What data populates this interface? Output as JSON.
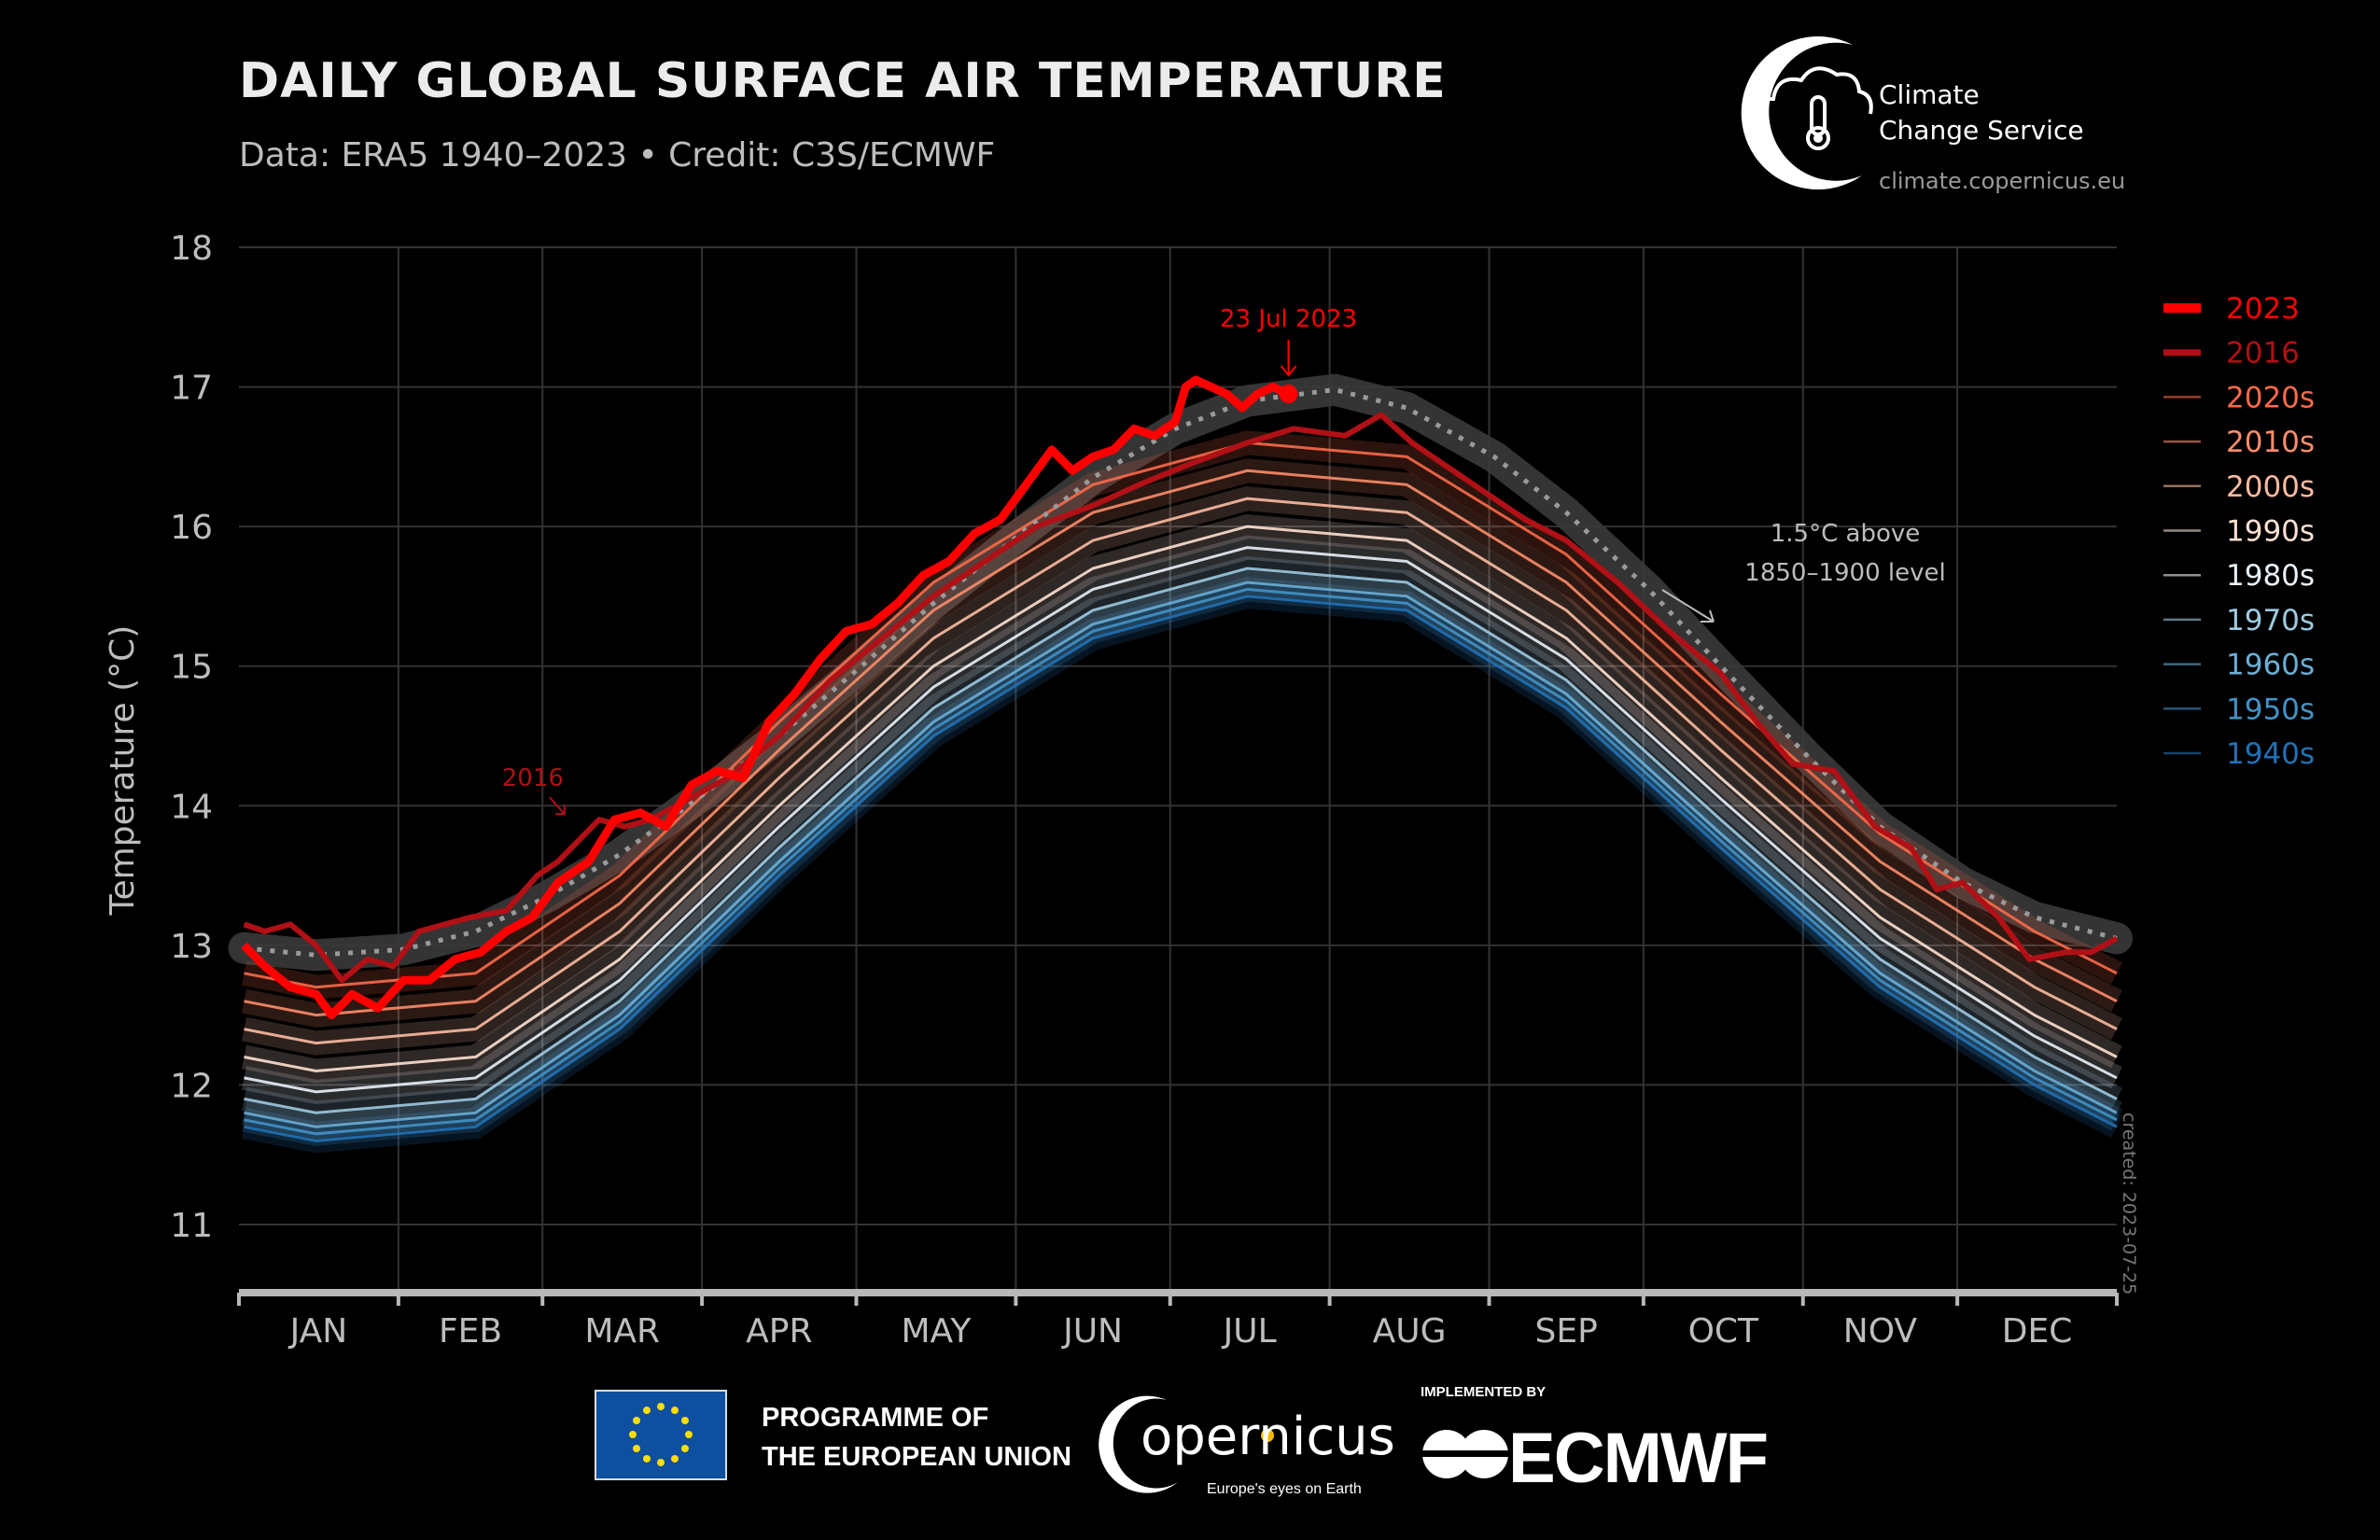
{
  "header": {
    "title": "DAILY GLOBAL SURFACE AIR TEMPERATURE",
    "subtitle": "Data: ERA5 1940–2023 • Credit: C3S/ECMWF"
  },
  "logo": {
    "line1": "Climate",
    "line2": "Change Service",
    "url": "climate.copernicus.eu"
  },
  "footer": {
    "eu_line1": "PROGRAMME OF",
    "eu_line2": "THE EUROPEAN UNION",
    "copernicus": "opernicus",
    "copernicus_tagline": "Europe's eyes on Earth",
    "implemented_by": "IMPLEMENTED BY",
    "ecmwf": "ECMWF"
  },
  "created": "created: 2023-07-25",
  "chart_data": {
    "type": "line",
    "title": "DAILY GLOBAL SURFACE AIR TEMPERATURE",
    "xlabel": "",
    "ylabel": "Temperature (°C)",
    "ylim": [
      10.5,
      18
    ],
    "yticks": [
      11,
      12,
      13,
      14,
      15,
      16,
      17,
      18
    ],
    "x_unit": "day of year",
    "xlim": [
      0,
      365
    ],
    "month_labels": [
      "JAN",
      "FEB",
      "MAR",
      "APR",
      "MAY",
      "JUN",
      "JUL",
      "AUG",
      "SEP",
      "OCT",
      "NOV",
      "DEC"
    ],
    "grid": true,
    "legend_position": "right",
    "decade_days": [
      1,
      15,
      46,
      74,
      105,
      135,
      166,
      196,
      227,
      258,
      288,
      319,
      349,
      365
    ],
    "series": [
      {
        "name": "2023",
        "color": "#ff0000",
        "kind": "year",
        "x": [
          1,
          5,
          10,
          15,
          18,
          22,
          27,
          32,
          37,
          42,
          47,
          52,
          57,
          62,
          68,
          73,
          78,
          83,
          88,
          93,
          98,
          103,
          108,
          113,
          118,
          123,
          128,
          133,
          138,
          143,
          148,
          153,
          158,
          162,
          166,
          170,
          174,
          178,
          182,
          184,
          186,
          189,
          192,
          195,
          198,
          201,
          204
        ],
        "y": [
          13.0,
          12.85,
          12.7,
          12.65,
          12.5,
          12.65,
          12.55,
          12.75,
          12.75,
          12.9,
          12.95,
          13.1,
          13.2,
          13.45,
          13.6,
          13.9,
          13.95,
          13.85,
          14.15,
          14.25,
          14.2,
          14.6,
          14.8,
          15.05,
          15.25,
          15.3,
          15.45,
          15.65,
          15.75,
          15.95,
          16.05,
          16.3,
          16.55,
          16.4,
          16.5,
          16.55,
          16.7,
          16.65,
          16.75,
          17.0,
          17.05,
          17.0,
          16.95,
          16.85,
          16.95,
          17.0,
          16.95
        ]
      },
      {
        "name": "2016",
        "color": "#b01016",
        "kind": "year",
        "x": [
          1,
          5,
          10,
          15,
          20,
          25,
          30,
          35,
          45,
          52,
          58,
          62,
          70,
          75,
          80,
          85,
          95,
          105,
          115,
          125,
          135,
          145,
          155,
          166,
          175,
          185,
          196,
          205,
          215,
          222,
          228,
          240,
          250,
          258,
          268,
          278,
          288,
          295,
          302,
          310,
          318,
          325,
          330,
          335,
          342,
          348,
          355,
          360,
          365
        ],
        "y": [
          13.15,
          13.1,
          13.15,
          13.0,
          12.75,
          12.9,
          12.85,
          13.1,
          13.2,
          13.25,
          13.5,
          13.6,
          13.9,
          13.85,
          13.9,
          14.0,
          14.2,
          14.5,
          14.9,
          15.2,
          15.5,
          15.75,
          16.0,
          16.15,
          16.3,
          16.45,
          16.6,
          16.7,
          16.65,
          16.8,
          16.6,
          16.3,
          16.05,
          15.9,
          15.6,
          15.25,
          14.95,
          14.6,
          14.3,
          14.25,
          13.85,
          13.7,
          13.4,
          13.45,
          13.2,
          12.9,
          12.95,
          12.95,
          13.05
        ]
      },
      {
        "name": "2020s",
        "color": "#fb6a4a",
        "kind": "decade",
        "y": [
          12.8,
          12.7,
          12.8,
          13.5,
          14.6,
          15.6,
          16.3,
          16.6,
          16.5,
          15.8,
          14.8,
          13.8,
          13.1,
          12.8
        ]
      },
      {
        "name": "2010s",
        "color": "#fc8d6a",
        "kind": "decade",
        "y": [
          12.6,
          12.5,
          12.6,
          13.3,
          14.4,
          15.4,
          16.1,
          16.4,
          16.3,
          15.6,
          14.6,
          13.6,
          12.9,
          12.6
        ]
      },
      {
        "name": "2000s",
        "color": "#fcbba1",
        "kind": "decade",
        "y": [
          12.4,
          12.3,
          12.4,
          13.1,
          14.2,
          15.2,
          15.9,
          16.2,
          16.1,
          15.4,
          14.4,
          13.4,
          12.7,
          12.4
        ]
      },
      {
        "name": "1990s",
        "color": "#fee0d2",
        "kind": "decade",
        "y": [
          12.2,
          12.1,
          12.2,
          12.9,
          14.0,
          15.0,
          15.7,
          16.0,
          15.9,
          15.2,
          14.2,
          13.2,
          12.5,
          12.2
        ]
      },
      {
        "name": "1980s",
        "color": "#e8f0f8",
        "kind": "decade",
        "y": [
          12.05,
          11.95,
          12.05,
          12.75,
          13.85,
          14.85,
          15.55,
          15.85,
          15.75,
          15.05,
          14.05,
          13.05,
          12.35,
          12.05
        ]
      },
      {
        "name": "1970s",
        "color": "#9ecae1",
        "kind": "decade",
        "y": [
          11.9,
          11.8,
          11.9,
          12.6,
          13.7,
          14.7,
          15.4,
          15.7,
          15.6,
          14.9,
          13.9,
          12.9,
          12.2,
          11.9
        ]
      },
      {
        "name": "1960s",
        "color": "#6baed6",
        "kind": "decade",
        "y": [
          11.8,
          11.7,
          11.8,
          12.5,
          13.6,
          14.6,
          15.3,
          15.6,
          15.5,
          14.8,
          13.8,
          12.8,
          12.1,
          11.8
        ]
      },
      {
        "name": "1950s",
        "color": "#4292c6",
        "kind": "decade",
        "y": [
          11.75,
          11.65,
          11.75,
          12.45,
          13.55,
          14.55,
          15.25,
          15.55,
          15.45,
          14.75,
          13.75,
          12.75,
          12.05,
          11.75
        ]
      },
      {
        "name": "1940s",
        "color": "#2171b5",
        "kind": "decade",
        "y": [
          11.7,
          11.6,
          11.7,
          12.4,
          13.5,
          14.5,
          15.2,
          15.5,
          15.4,
          14.7,
          13.7,
          12.7,
          12.0,
          11.7
        ]
      }
    ],
    "threshold": {
      "label_line1": "1.5°C above",
      "label_line2": "1850–1900 level",
      "x": [
        1,
        15,
        32,
        46,
        60,
        74,
        91,
        105,
        121,
        135,
        152,
        166,
        182,
        196,
        213,
        227,
        244,
        258,
        274,
        288,
        305,
        319,
        335,
        349,
        365
      ],
      "y": [
        12.98,
        12.93,
        12.97,
        13.1,
        13.35,
        13.65,
        14.1,
        14.5,
        15.0,
        15.45,
        15.95,
        16.35,
        16.7,
        16.9,
        16.98,
        16.85,
        16.5,
        16.1,
        15.55,
        15.0,
        14.35,
        13.85,
        13.45,
        13.2,
        13.05
      ]
    },
    "annotations": [
      {
        "text": "23 Jul 2023",
        "x": 204,
        "y": 16.95,
        "color": "#ff0000"
      },
      {
        "text": "2016",
        "x": 68,
        "y": 13.9,
        "color": "#b01016"
      }
    ]
  }
}
